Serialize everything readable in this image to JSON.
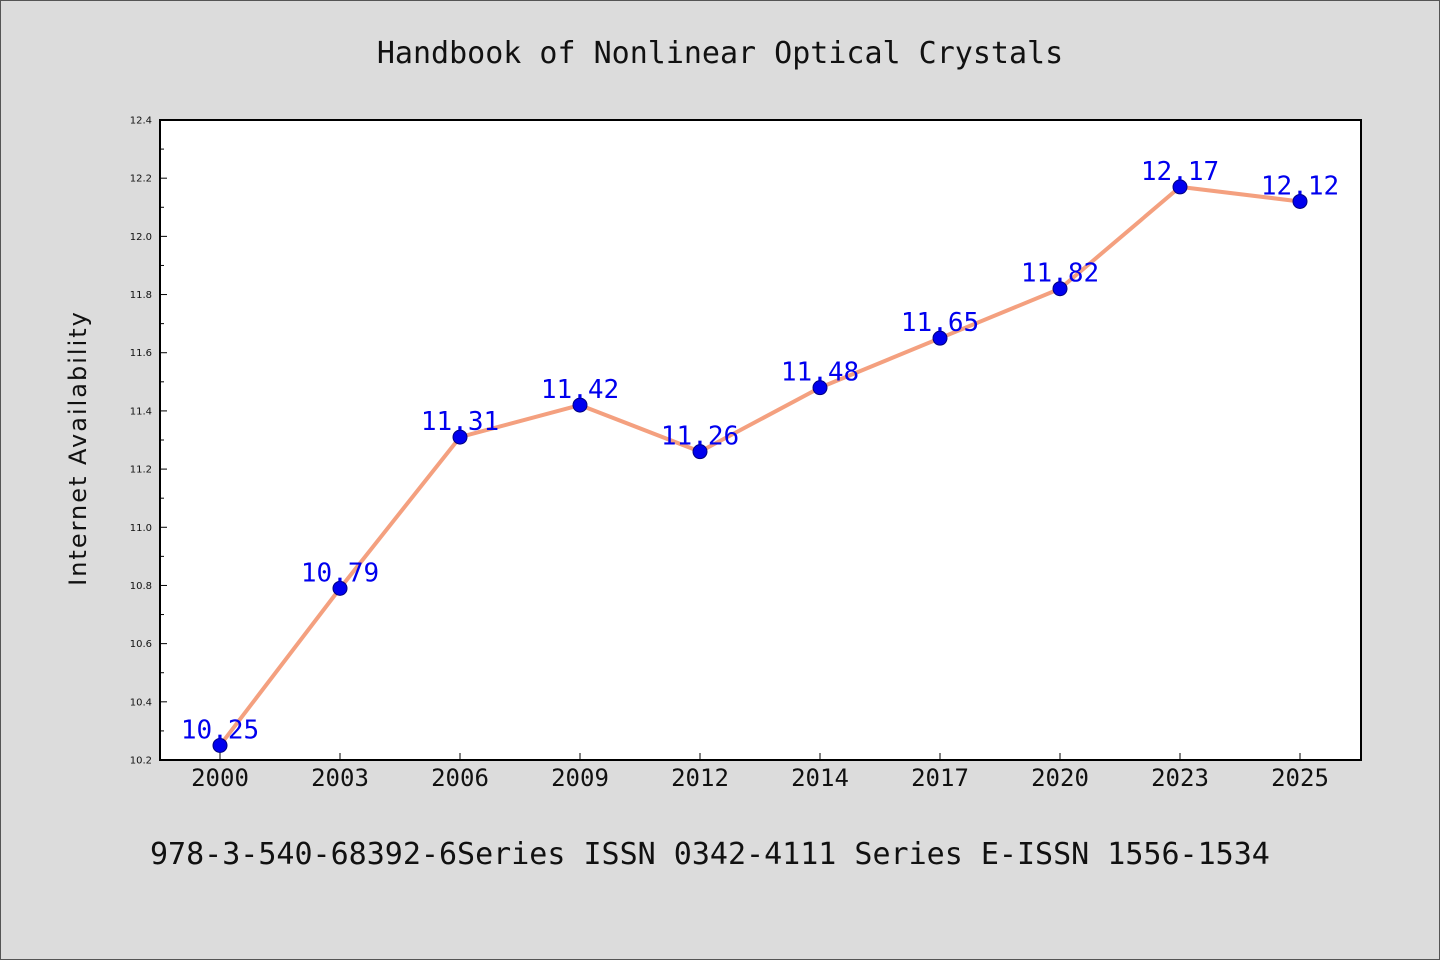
{
  "chart_data": {
    "type": "line",
    "title": "Handbook of Nonlinear Optical Crystals",
    "ylabel": "Internet Availability",
    "xlabel": "",
    "categories": [
      "2000",
      "2003",
      "2006",
      "2009",
      "2012",
      "2014",
      "2017",
      "2020",
      "2023",
      "2025"
    ],
    "values": [
      10.25,
      10.79,
      11.31,
      11.42,
      11.26,
      11.48,
      11.65,
      11.82,
      12.17,
      12.12
    ],
    "data_labels": [
      "10.25",
      "10.79",
      "11.31",
      "11.42",
      "11.26",
      "11.48",
      "11.65",
      "11.82",
      "12.17",
      "12.12"
    ],
    "ylim": [
      10.2,
      12.4
    ],
    "yticks": [
      "10.2",
      "10.4",
      "10.6",
      "10.8",
      "11.0",
      "11.2",
      "11.4",
      "11.6",
      "11.8",
      "12.0",
      "12.2",
      "12.4"
    ],
    "grid": false,
    "legend": "none",
    "colors": {
      "line": "#f4a07f",
      "marker": "#0000ee",
      "marker_edge": "#000080",
      "data_label": "#0000ee",
      "plot_bg": "#ffffff",
      "page_bg": "#dcdcdc"
    }
  },
  "footer": "978-3-540-68392-6Series ISSN 0342-4111 Series E-ISSN 1556-1534"
}
